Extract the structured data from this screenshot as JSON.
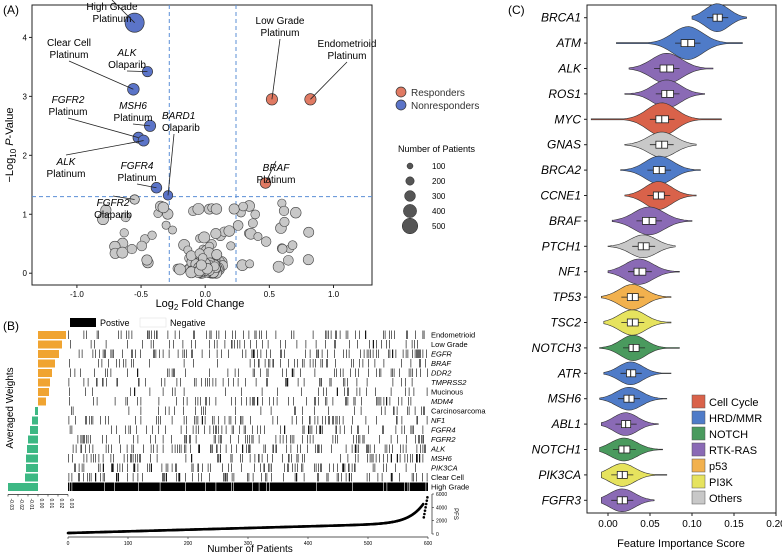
{
  "panels": {
    "a": "(A)",
    "b": "(B)",
    "c": "(C)"
  },
  "chart_data": [
    {
      "type": "scatter",
      "panel": "(A)",
      "xlabel_base": "Log",
      "xlabel_sub": "2",
      "xlabel_rest": " Fold Change",
      "ylabel_pre": "−Log",
      "ylabel_sub": "10",
      "ylabel_mid": " ",
      "ylabel_italic": "P",
      "ylabel_post": "-Value",
      "xlim": [
        -1.35,
        1.3
      ],
      "ylim": [
        -0.2,
        4.55
      ],
      "xticks": [
        "-1.0",
        "-0.5",
        "0.0",
        "0.5",
        "1.0"
      ],
      "xtick_values": [
        -1.0,
        -0.5,
        0.0,
        0.5,
        1.0
      ],
      "yticks": [
        "0",
        "1",
        "2",
        "3",
        "4"
      ],
      "ytick_values": [
        0,
        1,
        2,
        3,
        4
      ],
      "thresholds": {
        "x": [
          -0.28,
          0.24
        ],
        "y": 1.3
      },
      "colors": {
        "responders": "#E07A63",
        "nonresponders": "#5B74C8",
        "other": "#C8C8C8"
      },
      "legend_groups": [
        {
          "label": "Responders",
          "color": "#E07A63"
        },
        {
          "label": "Nonresponders",
          "color": "#5B74C8"
        }
      ],
      "size_legend_title": "Number of Patients",
      "size_legend": [
        "100",
        "200",
        "300",
        "400",
        "500"
      ],
      "size_legend_values": [
        100,
        200,
        300,
        400,
        500
      ],
      "highlighted": [
        {
          "gene": "",
          "drug": "High Grade",
          "drug2": "Platinum",
          "x": -0.55,
          "y": 4.25,
          "n": 500,
          "group": "nonresponders"
        },
        {
          "gene": "ALK",
          "drug": "Olaparib",
          "drug2": "",
          "x": -0.45,
          "y": 3.42,
          "n": 80,
          "group": "nonresponders"
        },
        {
          "gene": "",
          "drug": "Clear Cell",
          "drug2": "Platinum",
          "x": -0.56,
          "y": 3.12,
          "n": 120,
          "group": "nonresponders"
        },
        {
          "gene": "MSH6",
          "drug": "Platinum",
          "drug2": "",
          "x": -0.43,
          "y": 2.5,
          "n": 110,
          "group": "nonresponders"
        },
        {
          "gene": "FGFR2",
          "drug": "Platinum",
          "drug2": "",
          "x": -0.52,
          "y": 2.3,
          "n": 100,
          "group": "nonresponders"
        },
        {
          "gene": "ALK",
          "drug": "Platinum",
          "drug2": "",
          "x": -0.48,
          "y": 2.25,
          "n": 100,
          "group": "nonresponders"
        },
        {
          "gene": "FGFR4",
          "drug": "Platinum",
          "drug2": "",
          "x": -0.38,
          "y": 1.45,
          "n": 90,
          "group": "nonresponders"
        },
        {
          "gene": "BARD1",
          "drug": "Olaparib",
          "drug2": "",
          "x": -0.29,
          "y": 1.32,
          "n": 60,
          "group": "nonresponders"
        },
        {
          "gene": "FGFR2",
          "drug": "Olaparib",
          "drug2": "",
          "x": -0.55,
          "y": 1.25,
          "n": 60,
          "group": "other"
        },
        {
          "gene": "",
          "drug": "Low Grade",
          "drug2": "Platinum",
          "x": 0.52,
          "y": 2.95,
          "n": 110,
          "group": "responders"
        },
        {
          "gene": "",
          "drug": "Endometrioid",
          "drug2": "Platinum",
          "x": 0.82,
          "y": 2.95,
          "n": 110,
          "group": "responders"
        },
        {
          "gene": "BRAF",
          "drug": "Platinum",
          "drug2": "",
          "x": 0.47,
          "y": 1.53,
          "n": 90,
          "group": "responders"
        }
      ]
    },
    {
      "type": "heatmap",
      "panel": "(B)",
      "legend": [
        "Postive",
        "Negative"
      ],
      "rows": [
        {
          "label": "Endometrioid",
          "italic": false,
          "weight": 0.028,
          "density": 0.09
        },
        {
          "label": "Low Grade",
          "italic": false,
          "weight": 0.024,
          "density": 0.07
        },
        {
          "label": "EGFR",
          "italic": true,
          "weight": 0.021,
          "density": 0.12
        },
        {
          "label": "BRAF",
          "italic": true,
          "weight": 0.017,
          "density": 0.08
        },
        {
          "label": "DDR2",
          "italic": true,
          "weight": 0.014,
          "density": 0.08
        },
        {
          "label": "TMPRSS2",
          "italic": true,
          "weight": 0.012,
          "density": 0.1
        },
        {
          "label": "Mucinous",
          "italic": false,
          "weight": 0.011,
          "density": 0.05
        },
        {
          "label": "MDM4",
          "italic": true,
          "weight": 0.008,
          "density": 0.09
        },
        {
          "label": "Carcinosarcoma",
          "italic": false,
          "weight": -0.003,
          "density": 0.04
        },
        {
          "label": "NF1",
          "italic": true,
          "weight": -0.006,
          "density": 0.11
        },
        {
          "label": "FGFR4",
          "italic": true,
          "weight": -0.008,
          "density": 0.12
        },
        {
          "label": "FGFR2",
          "italic": true,
          "weight": -0.01,
          "density": 0.12
        },
        {
          "label": "ALK",
          "italic": true,
          "weight": -0.011,
          "density": 0.13
        },
        {
          "label": "MSH6",
          "italic": true,
          "weight": -0.012,
          "density": 0.12
        },
        {
          "label": "PIK3CA",
          "italic": true,
          "weight": -0.012,
          "density": 0.14
        },
        {
          "label": "Clear Cell",
          "italic": false,
          "weight": -0.013,
          "density": 0.1
        },
        {
          "label": "High Grade",
          "italic": false,
          "weight": -0.03,
          "density": 0.97
        }
      ],
      "weight_axis_label": "Averaged Weights",
      "weight_ticks": [
        "-0.03",
        "-0.02",
        "-0.01",
        "0.00",
        "0.01",
        "0.02",
        "0.03"
      ],
      "weight_tick_values": [
        -0.03,
        -0.02,
        -0.01,
        0.0,
        0.01,
        0.02,
        0.03
      ],
      "weight_colors": {
        "positive": "#F0A431",
        "negative": "#3DB884"
      },
      "pfs_label": "PFS",
      "pfs_ticks": [
        "6000",
        "4000",
        "2000",
        "0"
      ],
      "pfs_tick_values": [
        6000,
        4000,
        2000,
        0
      ],
      "xlabel": "Number of Patients",
      "xticks": [
        "0",
        "100",
        "200",
        "300",
        "400",
        "500",
        "600"
      ],
      "xtick_values": [
        0,
        100,
        200,
        300,
        400,
        500,
        600
      ],
      "n_patients": 600
    },
    {
      "type": "violin",
      "panel": "(C)",
      "xlabel": "Feature Importance Score",
      "xticks": [
        "0.00",
        "0.05",
        "0.10",
        "0.15",
        "0.20"
      ],
      "xtick_values": [
        0.0,
        0.05,
        0.1,
        0.15,
        0.2
      ],
      "xlim": [
        -0.025,
        0.2
      ],
      "genes": [
        {
          "name": "BRCA1",
          "category": "HRD/MMR",
          "median": 0.13,
          "q1": 0.125,
          "q3": 0.136,
          "min": 0.1,
          "max": 0.165,
          "height": 0.55
        },
        {
          "name": "ATM",
          "category": "HRD/MMR",
          "median": 0.095,
          "q1": 0.087,
          "q3": 0.103,
          "min": 0.01,
          "max": 0.16,
          "height": 0.65
        },
        {
          "name": "ALK",
          "category": "RTK-RAS",
          "median": 0.07,
          "q1": 0.062,
          "q3": 0.078,
          "min": 0.025,
          "max": 0.125,
          "height": 0.6
        },
        {
          "name": "ROS1",
          "category": "RTK-RAS",
          "median": 0.07,
          "q1": 0.064,
          "q3": 0.078,
          "min": 0.02,
          "max": 0.115,
          "height": 0.55
        },
        {
          "name": "MYC",
          "category": "Cell Cycle",
          "median": 0.064,
          "q1": 0.057,
          "q3": 0.072,
          "min": -0.02,
          "max": 0.135,
          "height": 0.65
        },
        {
          "name": "GNAS",
          "category": "Others",
          "median": 0.064,
          "q1": 0.057,
          "q3": 0.071,
          "min": 0.02,
          "max": 0.105,
          "height": 0.5
        },
        {
          "name": "BRCA2",
          "category": "HRD/MMR",
          "median": 0.061,
          "q1": 0.054,
          "q3": 0.068,
          "min": 0.015,
          "max": 0.11,
          "height": 0.55
        },
        {
          "name": "CCNE1",
          "category": "Cell Cycle",
          "median": 0.06,
          "q1": 0.054,
          "q3": 0.067,
          "min": 0.02,
          "max": 0.105,
          "height": 0.55
        },
        {
          "name": "BRAF",
          "category": "RTK-RAS",
          "median": 0.049,
          "q1": 0.041,
          "q3": 0.057,
          "min": 0.005,
          "max": 0.1,
          "height": 0.55
        },
        {
          "name": "PTCH1",
          "category": "Others",
          "median": 0.042,
          "q1": 0.036,
          "q3": 0.049,
          "min": 0.0,
          "max": 0.08,
          "height": 0.45
        },
        {
          "name": "NF1",
          "category": "RTK-RAS",
          "median": 0.037,
          "q1": 0.031,
          "q3": 0.045,
          "min": 0.0,
          "max": 0.085,
          "height": 0.5
        },
        {
          "name": "TP53",
          "category": "p53",
          "median": 0.029,
          "q1": 0.023,
          "q3": 0.036,
          "min": -0.008,
          "max": 0.075,
          "height": 0.5
        },
        {
          "name": "TSC2",
          "category": "PI3K",
          "median": 0.029,
          "q1": 0.023,
          "q3": 0.036,
          "min": -0.005,
          "max": 0.075,
          "height": 0.5
        },
        {
          "name": "NOTCH3",
          "category": "NOTCH",
          "median": 0.03,
          "q1": 0.025,
          "q3": 0.037,
          "min": -0.01,
          "max": 0.085,
          "height": 0.5
        },
        {
          "name": "ATR",
          "category": "HRD/MMR",
          "median": 0.027,
          "q1": 0.022,
          "q3": 0.033,
          "min": -0.005,
          "max": 0.075,
          "height": 0.45
        },
        {
          "name": "MSH6",
          "category": "HRD/MMR",
          "median": 0.025,
          "q1": 0.019,
          "q3": 0.031,
          "min": -0.01,
          "max": 0.07,
          "height": 0.45
        },
        {
          "name": "ABL1",
          "category": "RTK-RAS",
          "median": 0.021,
          "q1": 0.016,
          "q3": 0.027,
          "min": -0.008,
          "max": 0.06,
          "height": 0.45
        },
        {
          "name": "NOTCH1",
          "category": "NOTCH",
          "median": 0.019,
          "q1": 0.013,
          "q3": 0.026,
          "min": -0.01,
          "max": 0.065,
          "height": 0.45
        },
        {
          "name": "PIK3CA",
          "category": "PI3K",
          "median": 0.017,
          "q1": 0.011,
          "q3": 0.023,
          "min": -0.008,
          "max": 0.07,
          "height": 0.45
        },
        {
          "name": "FGFR3",
          "category": "RTK-RAS",
          "median": 0.017,
          "q1": 0.011,
          "q3": 0.023,
          "min": -0.008,
          "max": 0.055,
          "height": 0.45
        }
      ],
      "legend": [
        {
          "label": "Cell Cycle",
          "color": "#D9624A"
        },
        {
          "label": "HRD/MMR",
          "color": "#4F7BC8"
        },
        {
          "label": "NOTCH",
          "color": "#4A9A5E"
        },
        {
          "label": "RTK-RAS",
          "color": "#8A6AB5"
        },
        {
          "label": "p53",
          "color": "#F2B14E"
        },
        {
          "label": "PI3K",
          "color": "#E6E35E"
        },
        {
          "label": "Others",
          "color": "#C8C8C8"
        }
      ]
    }
  ]
}
